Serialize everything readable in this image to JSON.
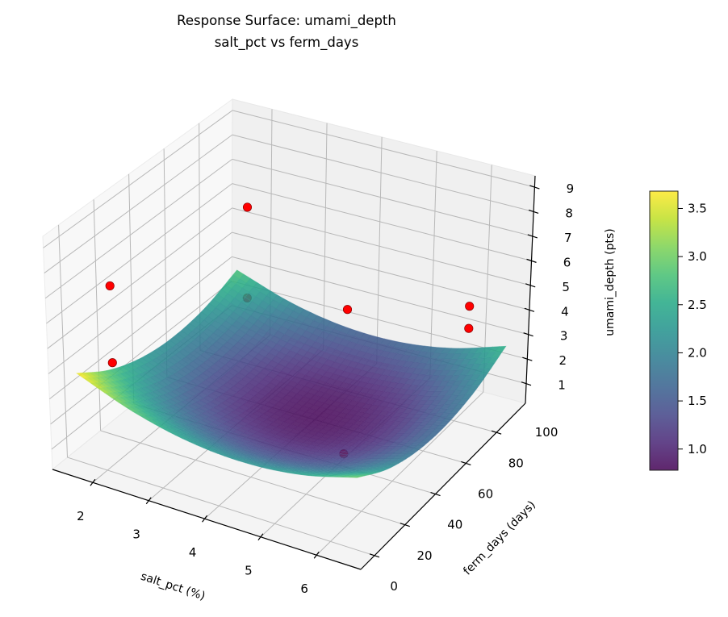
{
  "chart_data": {
    "type": "surface3d",
    "title": [
      "Response Surface: umami_depth",
      "salt_pct vs ferm_days"
    ],
    "xlabel": "salt_pct (%)",
    "ylabel": "ferm_days (days)",
    "zlabel": "umami_depth (pts)",
    "xlim": [
      1.28,
      6.79
    ],
    "ylim": [
      11,
      119
    ],
    "zlim": [
      0.2,
      9.46
    ],
    "xticks": [
      2,
      3,
      4,
      5,
      6
    ],
    "yticks": [
      0,
      20,
      40,
      60,
      80,
      100
    ],
    "zticks": [
      1,
      2,
      3,
      4,
      5,
      6,
      7,
      8,
      9
    ],
    "grid": true,
    "colormap": "viridis",
    "surface_alpha": 0.85,
    "surface": {
      "x": [
        1.5,
        2.5,
        3.5,
        4.5,
        5.5,
        6.5
      ],
      "y": [
        20,
        39,
        58,
        77,
        96,
        115
      ],
      "z": [
        [
          3.7,
          2.86,
          2.36,
          2.22,
          2.44,
          3.0
        ],
        [
          2.83,
          2.01,
          1.54,
          1.42,
          1.65,
          2.23
        ],
        [
          2.31,
          1.5,
          1.05,
          0.95,
          1.2,
          1.81
        ],
        [
          2.13,
          1.34,
          0.91,
          0.83,
          1.1,
          1.73
        ],
        [
          2.29,
          1.53,
          1.12,
          1.06,
          1.35,
          1.99
        ],
        [
          2.8,
          2.06,
          1.66,
          1.62,
          1.94,
          2.6
        ]
      ]
    },
    "points": {
      "color": "#ff0000",
      "edge_color": "#8b0000",
      "data": [
        {
          "x": 2.0,
          "y": 105,
          "z": 6.2,
          "behind_surface": false
        },
        {
          "x": 2.0,
          "y": 105,
          "z": 2.5,
          "behind_surface": true
        },
        {
          "x": 2.0,
          "y": 25,
          "z": 7.25,
          "behind_surface": false
        },
        {
          "x": 2.0,
          "y": 25,
          "z": 4.2,
          "behind_surface": false
        },
        {
          "x": 4.0,
          "y": 100,
          "z": 3.5,
          "behind_surface": false
        },
        {
          "x": 6.0,
          "y": 108,
          "z": 4.35,
          "behind_surface": false
        },
        {
          "x": 6.0,
          "y": 108,
          "z": 3.45,
          "behind_surface": false
        },
        {
          "x": 5.0,
          "y": 64,
          "z": 0.4,
          "behind_surface": true
        }
      ]
    },
    "colorbar": {
      "range": [
        0.78,
        3.68
      ],
      "ticks": [
        1.0,
        1.5,
        2.0,
        2.5,
        3.0,
        3.5
      ],
      "tick_labels": [
        "1.0",
        "1.5",
        "2.0",
        "2.5",
        "3.0",
        "3.5"
      ]
    }
  }
}
